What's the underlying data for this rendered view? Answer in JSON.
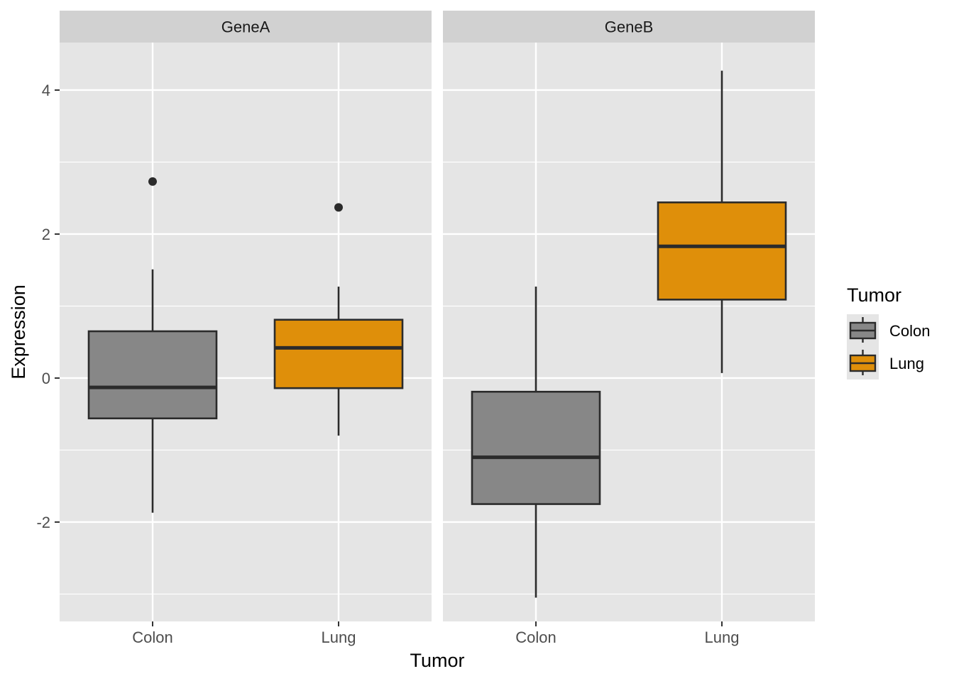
{
  "chart_data": {
    "type": "boxplot",
    "facet_by": "gene",
    "facets": [
      "GeneA",
      "GeneB"
    ],
    "categories": [
      "Colon",
      "Lung"
    ],
    "xlabel": "Tumor",
    "ylabel": "Expression",
    "ylim": [
      -3.38,
      4.66
    ],
    "yticks": [
      -2,
      0,
      2,
      4
    ],
    "legend": {
      "title": "Tumor",
      "position": "right",
      "entries": [
        "Colon",
        "Lung"
      ]
    },
    "colors": {
      "Colon": "#878787",
      "Lung": "#df8f0a",
      "panel_bg": "#e5e5e5",
      "strip_bg": "#d1d1d1",
      "grid": "#ffffff",
      "box_line": "#2b2b2b"
    },
    "boxes": [
      {
        "facet": "GeneA",
        "category": "Colon",
        "whisker_low": -1.87,
        "q1": -0.56,
        "median": -0.13,
        "q3": 0.65,
        "whisker_high": 1.51,
        "outliers": [
          2.73
        ]
      },
      {
        "facet": "GeneA",
        "category": "Lung",
        "whisker_low": -0.8,
        "q1": -0.14,
        "median": 0.42,
        "q3": 0.81,
        "whisker_high": 1.27,
        "outliers": [
          2.37
        ]
      },
      {
        "facet": "GeneB",
        "category": "Colon",
        "whisker_low": -3.05,
        "q1": -1.75,
        "median": -1.1,
        "q3": -0.19,
        "whisker_high": 1.27,
        "outliers": []
      },
      {
        "facet": "GeneB",
        "category": "Lung",
        "whisker_low": 0.07,
        "q1": 1.09,
        "median": 1.83,
        "q3": 2.44,
        "whisker_high": 4.27,
        "outliers": []
      }
    ]
  }
}
